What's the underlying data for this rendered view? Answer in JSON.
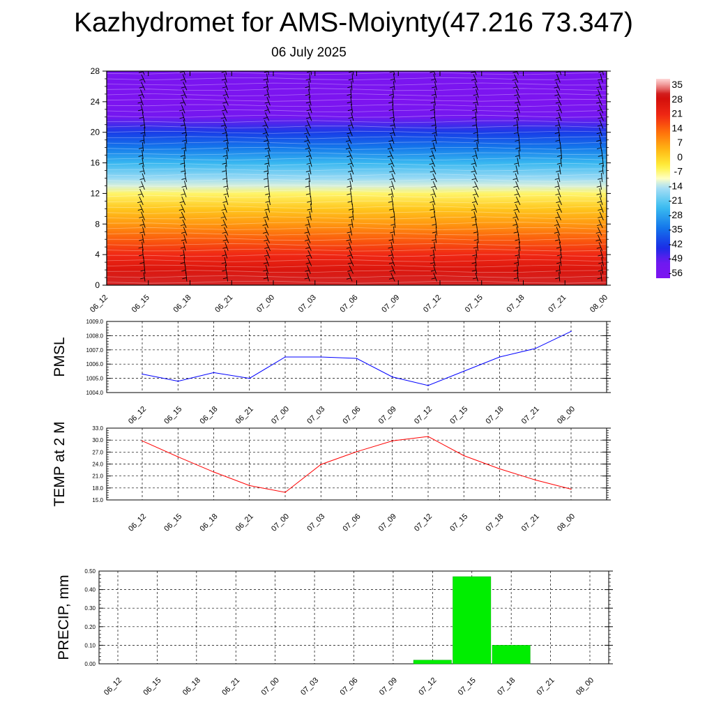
{
  "header": {
    "title": "Kazhydromet for AMS-Moiynty(47.216 73.347)",
    "subtitle": "06 July 2025"
  },
  "time_labels": [
    "06_12",
    "06_15",
    "06_18",
    "06_21",
    "07_00",
    "07_03",
    "07_06",
    "07_09",
    "07_12",
    "07_15",
    "07_18",
    "07_21",
    "08_00"
  ],
  "chart_data": [
    {
      "id": "cross-section",
      "type": "heatmap",
      "title": "",
      "ylabel": "",
      "x": [
        "06_12",
        "06_15",
        "06_18",
        "06_21",
        "07_00",
        "07_03",
        "07_06",
        "07_09",
        "07_12",
        "07_15",
        "07_18",
        "07_21",
        "08_00"
      ],
      "yticks": [
        0,
        4,
        8,
        12,
        16,
        20,
        24,
        28
      ],
      "ylim": [
        0,
        28
      ],
      "temperature_profile": [
        {
          "height": 0,
          "temp": 31
        },
        {
          "height": 2,
          "temp": 26
        },
        {
          "height": 4,
          "temp": 20
        },
        {
          "height": 6,
          "temp": 14
        },
        {
          "height": 8,
          "temp": 7
        },
        {
          "height": 10,
          "temp": 1
        },
        {
          "height": 12,
          "temp": -7
        },
        {
          "height": 13,
          "temp": -13
        },
        {
          "height": 14,
          "temp": -17
        },
        {
          "height": 16,
          "temp": -26
        },
        {
          "height": 18,
          "temp": -35
        },
        {
          "height": 20,
          "temp": -43
        },
        {
          "height": 22,
          "temp": -55
        },
        {
          "height": 24,
          "temp": -60
        },
        {
          "height": 26,
          "temp": -59
        },
        {
          "height": 28,
          "temp": -58
        }
      ],
      "wind_barbs": true,
      "colorbar": {
        "labels": [
          "35",
          "28",
          "21",
          "14",
          "7",
          "0",
          "-7",
          "-14",
          "-21",
          "-28",
          "-35",
          "-42",
          "-49",
          "-56"
        ],
        "values": [
          35,
          28,
          21,
          14,
          7,
          0,
          -7,
          -14,
          -21,
          -28,
          -35,
          -42,
          -49,
          -56
        ],
        "range": [
          -60,
          38
        ]
      }
    },
    {
      "id": "pmsl",
      "type": "line",
      "ylabel": "PMSL",
      "x": [
        "06_12",
        "06_15",
        "06_18",
        "06_21",
        "07_00",
        "07_03",
        "07_06",
        "07_09",
        "07_12",
        "07_15",
        "07_18",
        "07_21",
        "08_00"
      ],
      "values": [
        1005.3,
        1004.8,
        1005.4,
        1005.0,
        1006.5,
        1006.5,
        1006.4,
        1005.1,
        1004.5,
        1005.5,
        1006.5,
        1007.1,
        1008.3
      ],
      "ylim": [
        1004.0,
        1009.0
      ],
      "ytick_labels": [
        "1004.0",
        "1005.0",
        "1006.0",
        "1007.0",
        "1008.0",
        "1009.0"
      ],
      "color": "#0000ff",
      "grid": true
    },
    {
      "id": "temp2m",
      "type": "line",
      "ylabel": "TEMP at 2 M",
      "x": [
        "06_12",
        "06_15",
        "06_18",
        "06_21",
        "07_00",
        "07_03",
        "07_06",
        "07_09",
        "07_12",
        "07_15",
        "07_18",
        "07_21",
        "08_00"
      ],
      "values": [
        29.8,
        25.8,
        22.0,
        18.6,
        16.9,
        23.9,
        27.1,
        29.8,
        30.9,
        26.1,
        22.8,
        20.0,
        17.7
      ],
      "ylim": [
        15.0,
        33.0
      ],
      "ytick_labels": [
        "15.0",
        "18.0",
        "21.0",
        "24.0",
        "27.0",
        "30.0",
        "33.0"
      ],
      "color": "#ff0000",
      "grid": true
    },
    {
      "id": "precip",
      "type": "bar",
      "ylabel": "PRECIP, mm",
      "categories": [
        "06_12",
        "06_15",
        "06_18",
        "06_21",
        "07_00",
        "07_03",
        "07_06",
        "07_09",
        "07_12",
        "07_15",
        "07_18",
        "07_21",
        "08_00"
      ],
      "values": [
        0,
        0,
        0,
        0,
        0,
        0,
        0,
        0,
        0.02,
        0.47,
        0.1,
        0,
        0
      ],
      "ylim": [
        0,
        0.5
      ],
      "ytick_labels": [
        "0.00",
        "0.10",
        "0.20",
        "0.30",
        "0.40",
        "0.50"
      ],
      "color": "#00ee00",
      "grid": true
    }
  ]
}
